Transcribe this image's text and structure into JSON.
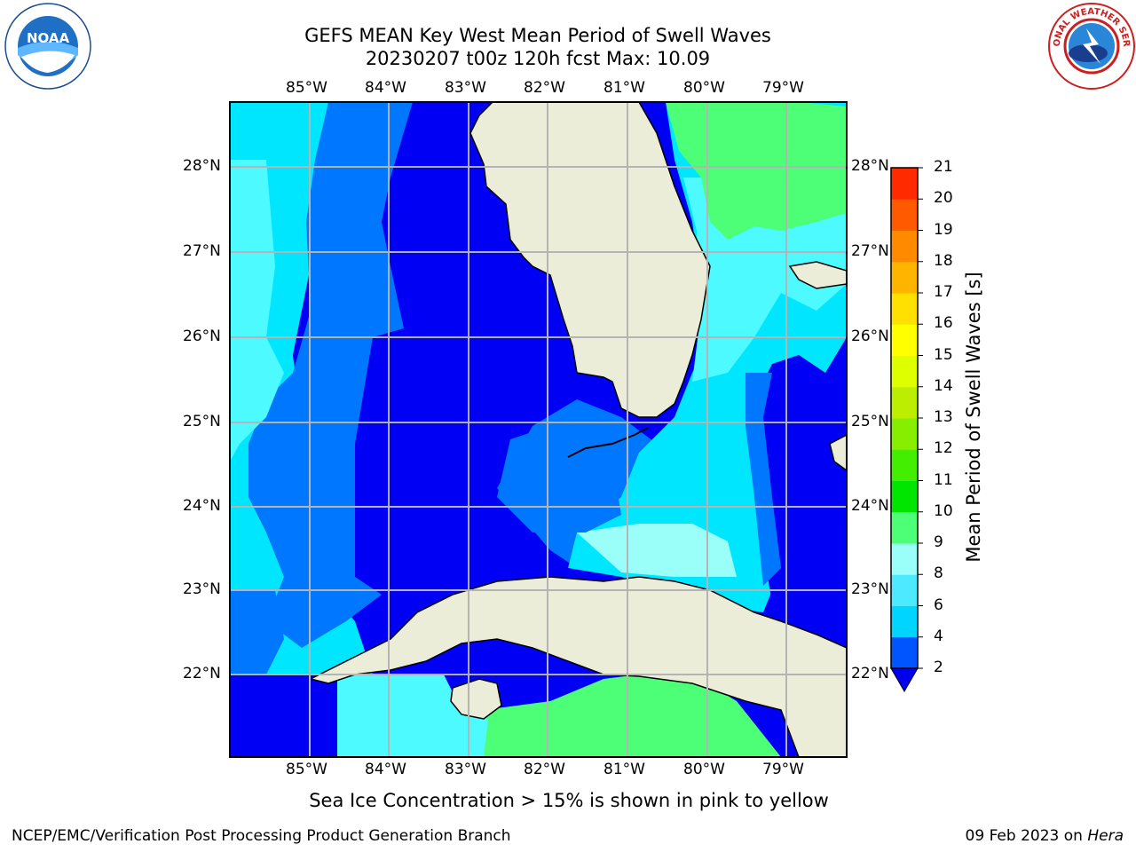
{
  "title": {
    "line1": "GEFS MEAN Key West Mean Period of Swell Waves",
    "line2": "20230207 t00z 120h fcst   Max: 10.09"
  },
  "map": {
    "lon_labels": [
      "85°W",
      "84°W",
      "83°W",
      "82°W",
      "81°W",
      "80°W",
      "79°W"
    ],
    "lat_labels": [
      "28°N",
      "27°N",
      "26°N",
      "25°N",
      "24°N",
      "23°N",
      "22°N"
    ],
    "colors": {
      "land": "#ecedd9",
      "grid": "#b4b4b4",
      "level_2_4": "#0000f5",
      "level_4_6": "#0077ff",
      "level_6_8": "#00e6ff",
      "level_8_9": "#4dfaff",
      "level_9_10": "#4dff77"
    }
  },
  "colorbar": {
    "label": "Mean Period of Swell Waves [s]",
    "ticks": [
      "2",
      "4",
      "6",
      "8",
      "9",
      "10",
      "11",
      "12",
      "13",
      "14",
      "15",
      "16",
      "17",
      "18",
      "19",
      "20",
      "21"
    ],
    "colors": [
      "#0055ff",
      "#00d5ff",
      "#4de9ff",
      "#99fff8",
      "#4dff77",
      "#00e600",
      "#44ee00",
      "#88ee00",
      "#bbee00",
      "#ddff00",
      "#ffff00",
      "#ffe000",
      "#ffb400",
      "#ff8a00",
      "#ff5a00",
      "#ff2a00"
    ],
    "under_color": "#0000ee"
  },
  "footer": {
    "note": "Sea Ice Concentration > 15% is shown in pink to yellow",
    "credit": "NCEP/EMC/Verification Post Processing Product Generation Branch",
    "date": "09 Feb 2023 on",
    "machine": "Hera"
  },
  "logos": {
    "noaa_text": "NOAA",
    "nws_text": "NATIONAL WEATHER SERVICE"
  }
}
